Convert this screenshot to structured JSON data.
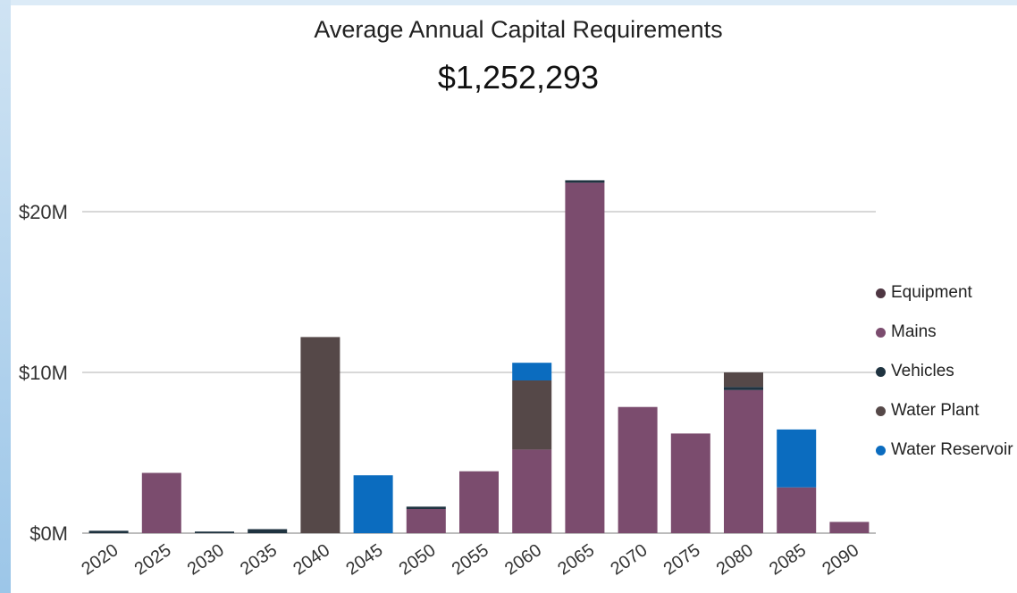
{
  "chart_data": {
    "type": "bar",
    "stacked": true,
    "title": "Average Annual Capital Requirements",
    "subtitle": "$1,252,293",
    "categories": [
      "2020",
      "2025",
      "2030",
      "2035",
      "2040",
      "2045",
      "2050",
      "2055",
      "2060",
      "2065",
      "2070",
      "2075",
      "2080",
      "2085",
      "2090"
    ],
    "series": [
      {
        "name": "Equipment",
        "color": "#4e3642",
        "values": [
          0,
          0,
          0,
          0,
          0,
          0,
          0,
          0,
          0,
          0,
          0,
          0,
          0,
          0,
          0
        ]
      },
      {
        "name": "Mains",
        "color": "#7b4c6e",
        "values": [
          0,
          3.75,
          0,
          0,
          0,
          0,
          1.5,
          3.85,
          5.2,
          21.8,
          7.85,
          6.2,
          8.9,
          2.85,
          0.7
        ]
      },
      {
        "name": "Vehicles",
        "color": "#1f3340",
        "values": [
          0.15,
          0,
          0.1,
          0.25,
          0,
          0,
          0.15,
          0,
          0,
          0.15,
          0,
          0,
          0.2,
          0,
          0
        ]
      },
      {
        "name": "Water Plant",
        "color": "#554848",
        "values": [
          0,
          0,
          0,
          0,
          12.2,
          0,
          0,
          0,
          4.3,
          0,
          0,
          0,
          0.9,
          0,
          0
        ]
      },
      {
        "name": "Water Reservoir",
        "color": "#0b6cbf",
        "values": [
          0,
          0,
          0,
          0,
          0,
          3.6,
          0,
          0,
          1.1,
          0,
          0,
          0,
          0,
          3.6,
          0
        ]
      }
    ],
    "yticks": [
      "$0M",
      "$10M",
      "$20M"
    ],
    "ytick_values": [
      0,
      10,
      20
    ],
    "ylim": [
      0,
      23
    ],
    "grid": true,
    "legend_position": "right"
  }
}
